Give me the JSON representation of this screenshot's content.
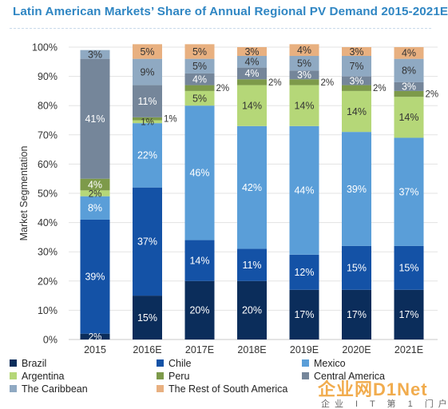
{
  "title": "Latin American Markets’ Share of Annual Regional PV Demand 2015-2021E",
  "watermark": {
    "main": "企业网D1Net",
    "sub": "企业 I T 第 1 门户"
  },
  "chart_data": {
    "type": "bar",
    "stacked": true,
    "ylabel": "Market Segmentation",
    "xlabel": "",
    "ylim": [
      0,
      100
    ],
    "y_ticks": [
      "0%",
      "10%",
      "20%",
      "30%",
      "40%",
      "50%",
      "60%",
      "70%",
      "80%",
      "90%",
      "100%"
    ],
    "grid": true,
    "legend_position": "bottom",
    "categories": [
      "2015",
      "2016E",
      "2017E",
      "2018E",
      "2019E",
      "2020E",
      "2021E"
    ],
    "series": [
      {
        "name": "Brazil",
        "color": "#0b2d5b",
        "values": [
          2,
          15,
          20,
          20,
          17,
          17,
          17
        ],
        "labels": [
          "2%",
          "15%",
          "20%",
          "20%",
          "17%",
          "17%",
          "17%"
        ]
      },
      {
        "name": "Chile",
        "color": "#1452a6",
        "values": [
          39,
          37,
          14,
          11,
          12,
          15,
          15
        ],
        "labels": [
          "39%",
          "37%",
          "14%",
          "11%",
          "12%",
          "15%",
          "15%"
        ]
      },
      {
        "name": "Mexico",
        "color": "#5a9ed8",
        "values": [
          8,
          22,
          46,
          42,
          44,
          39,
          37
        ],
        "labels": [
          "8%",
          "22%",
          "46%",
          "42%",
          "44%",
          "39%",
          "37%"
        ]
      },
      {
        "name": "Argentina",
        "color": "#b5d778",
        "values": [
          2,
          1,
          5,
          14,
          14,
          14,
          14
        ],
        "labels": [
          "2%",
          "1%",
          "5%",
          "14%",
          "14%",
          "14%",
          "14%"
        ]
      },
      {
        "name": "Peru",
        "color": "#7d9a4a",
        "values": [
          4,
          1,
          2,
          2,
          2,
          2,
          2
        ],
        "labels": [
          "4%",
          "1%",
          "2%",
          "2%",
          "2%",
          "2%",
          "2%"
        ]
      },
      {
        "name": "Central America",
        "color": "#75869a",
        "values": [
          41,
          11,
          4,
          4,
          3,
          3,
          3
        ],
        "labels": [
          "41%",
          "11%",
          "4%",
          "4%",
          "3%",
          "3%",
          "3%"
        ]
      },
      {
        "name": "The Caribbean",
        "color": "#8fa9c2",
        "values": [
          3,
          9,
          5,
          4,
          5,
          7,
          8
        ],
        "labels": [
          "3%",
          "9%",
          "5%",
          "4%",
          "5%",
          "7%",
          "8%"
        ]
      },
      {
        "name": "The Rest of South America",
        "color": "#e8b080",
        "values": [
          0,
          5,
          5,
          3,
          4,
          3,
          4
        ],
        "labels": [
          "",
          "5%",
          "5%",
          "3%",
          "4%",
          "3%",
          "4%"
        ]
      }
    ]
  }
}
